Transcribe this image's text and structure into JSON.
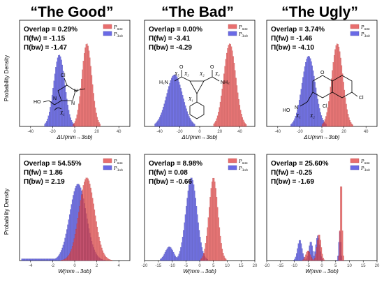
{
  "column_titles": [
    "“The Good”",
    "“The Bad”",
    "“The Ugly”"
  ],
  "ylabel": "Probability Density",
  "legend": {
    "red_label": "P",
    "red_sub": "mm",
    "blue_label": "P",
    "blue_sub": "3ob"
  },
  "colors": {
    "red": "#e34a4a",
    "red_edge": "#a82020",
    "blue": "#4545e0",
    "blue_edge": "#1e1e8a",
    "axes": "#000000"
  },
  "chemistry": {
    "good": {
      "labels": [
        "Cl",
        "N",
        "N",
        "N",
        "HO"
      ],
      "torsions": [
        "X",
        "1"
      ]
    },
    "bad": {
      "labels": [
        "H₂N",
        "NH₂",
        "O",
        "O"
      ],
      "torsions": [
        "X₁",
        "X₂",
        "X₃",
        "X₄",
        "X₅"
      ]
    },
    "ugly": {
      "labels": [
        "O",
        "N",
        "HO",
        "Cl",
        "Cl"
      ],
      "torsions": [
        "X₁",
        "X₂"
      ]
    }
  },
  "chart_data": [
    {
      "type": "bar",
      "panel": "good-top",
      "stats": [
        "Overlap = 0.29%",
        "Π(fw) = -1.15",
        "Π(bw) = -1.47"
      ],
      "xlabel_main": "ΔU",
      "xlabel_paren": "(mm→3ob)",
      "xlim": [
        -50,
        50
      ],
      "xticks": [
        -40,
        -20,
        0,
        20,
        40
      ],
      "series": [
        {
          "name": "P_mm",
          "color": "red",
          "center": 11,
          "sd": 4.5,
          "peak": 0.22
        },
        {
          "name": "P_3ob",
          "color": "blue",
          "center": -14,
          "sd": 5,
          "peak": 0.19
        }
      ]
    },
    {
      "type": "bar",
      "panel": "bad-top",
      "stats": [
        "Overlap = 0.00%",
        "Π(fw) = -3.41",
        "Π(bw) = -4.29"
      ],
      "xlabel_main": "ΔU",
      "xlabel_paren": "(mm→3ob)",
      "xlim": [
        -55,
        55
      ],
      "xticks": [
        -40,
        -20,
        0,
        20,
        40
      ],
      "series": [
        {
          "name": "P_mm",
          "color": "red",
          "center": 30,
          "sd": 6,
          "peak": 0.16
        },
        {
          "name": "P_3ob",
          "color": "blue",
          "center": -25,
          "sd": 8,
          "peak": 0.1
        }
      ]
    },
    {
      "type": "bar",
      "panel": "ugly-top",
      "stats": [
        "Overlap = 3.74%",
        "Π(fw) = -1.46",
        "Π(bw) = -4.10"
      ],
      "xlabel_main": "ΔU",
      "xlabel_paren": "(mm→3ob)",
      "xlim": [
        -50,
        50
      ],
      "xticks": [
        -40,
        -20,
        0,
        20,
        40
      ],
      "series": [
        {
          "name": "P_mm",
          "color": "red",
          "center": 14,
          "sd": 5,
          "peak": 0.2
        },
        {
          "name": "P_3ob",
          "color": "blue",
          "center": -12,
          "sd": 6,
          "peak": 0.17
        }
      ]
    },
    {
      "type": "bar",
      "panel": "good-bottom",
      "stats": [
        "Overlap = 54.55%",
        "Π(fw) = 1.86",
        "Π(bw) = 2.19"
      ],
      "xlabel_main": "W",
      "xlabel_paren": "(mm→3ob)",
      "xlim": [
        -5,
        5
      ],
      "xticks": [
        -4,
        -2,
        0,
        2,
        4
      ],
      "series": [
        {
          "name": "P_mm",
          "color": "red",
          "center": 1.1,
          "sd": 0.7,
          "peak": 0.95
        },
        {
          "name": "P_3ob",
          "color": "blue",
          "center": 0.3,
          "sd": 0.75,
          "peak": 0.88,
          "tail_left": -4.8
        }
      ]
    },
    {
      "type": "bar",
      "panel": "bad-bottom",
      "stats": [
        "Overlap = 8.98%",
        "Π(fw) = 0.08",
        "Π(bw) = -0.66"
      ],
      "xlabel_main": "W",
      "xlabel_paren": "(mm→3ob)",
      "xlim": [
        -20,
        20
      ],
      "xticks": [
        -20,
        -15,
        -10,
        -5,
        0,
        5,
        10,
        15,
        20
      ],
      "series": [
        {
          "name": "P_mm",
          "color": "red",
          "center": 5,
          "sd": 1.6,
          "peak": 0.3
        },
        {
          "name": "P_3ob",
          "color": "blue",
          "center": -3,
          "sd": 2,
          "peak": 0.3,
          "secondary": {
            "center": -11,
            "sd": 1.5,
            "peak": 0.05
          }
        }
      ]
    },
    {
      "type": "bar",
      "panel": "ugly-bottom",
      "stats": [
        "Overlap = 25.60%",
        "Π(fw) = -0.25",
        "Π(bw) = -1.69"
      ],
      "xlabel_main": "W",
      "xlabel_paren": "(mm→3ob)",
      "xlim": [
        -20,
        20
      ],
      "xticks": [
        -20,
        -15,
        -10,
        -5,
        0,
        5,
        10,
        15,
        20
      ],
      "series": [
        {
          "name": "P_mm",
          "color": "red",
          "peaks": [
            [
              7,
              0.35,
              1.0
            ],
            [
              -1,
              0.7,
              0.32
            ],
            [
              -5,
              0.8,
              0.12
            ]
          ]
        },
        {
          "name": "P_3ob",
          "color": "blue",
          "peaks": [
            [
              -8,
              0.8,
              0.25
            ],
            [
              -4,
              0.7,
              0.23
            ],
            [
              -1.5,
              0.7,
              0.3
            ],
            [
              6.5,
              0.35,
              0.35
            ]
          ]
        }
      ]
    }
  ]
}
